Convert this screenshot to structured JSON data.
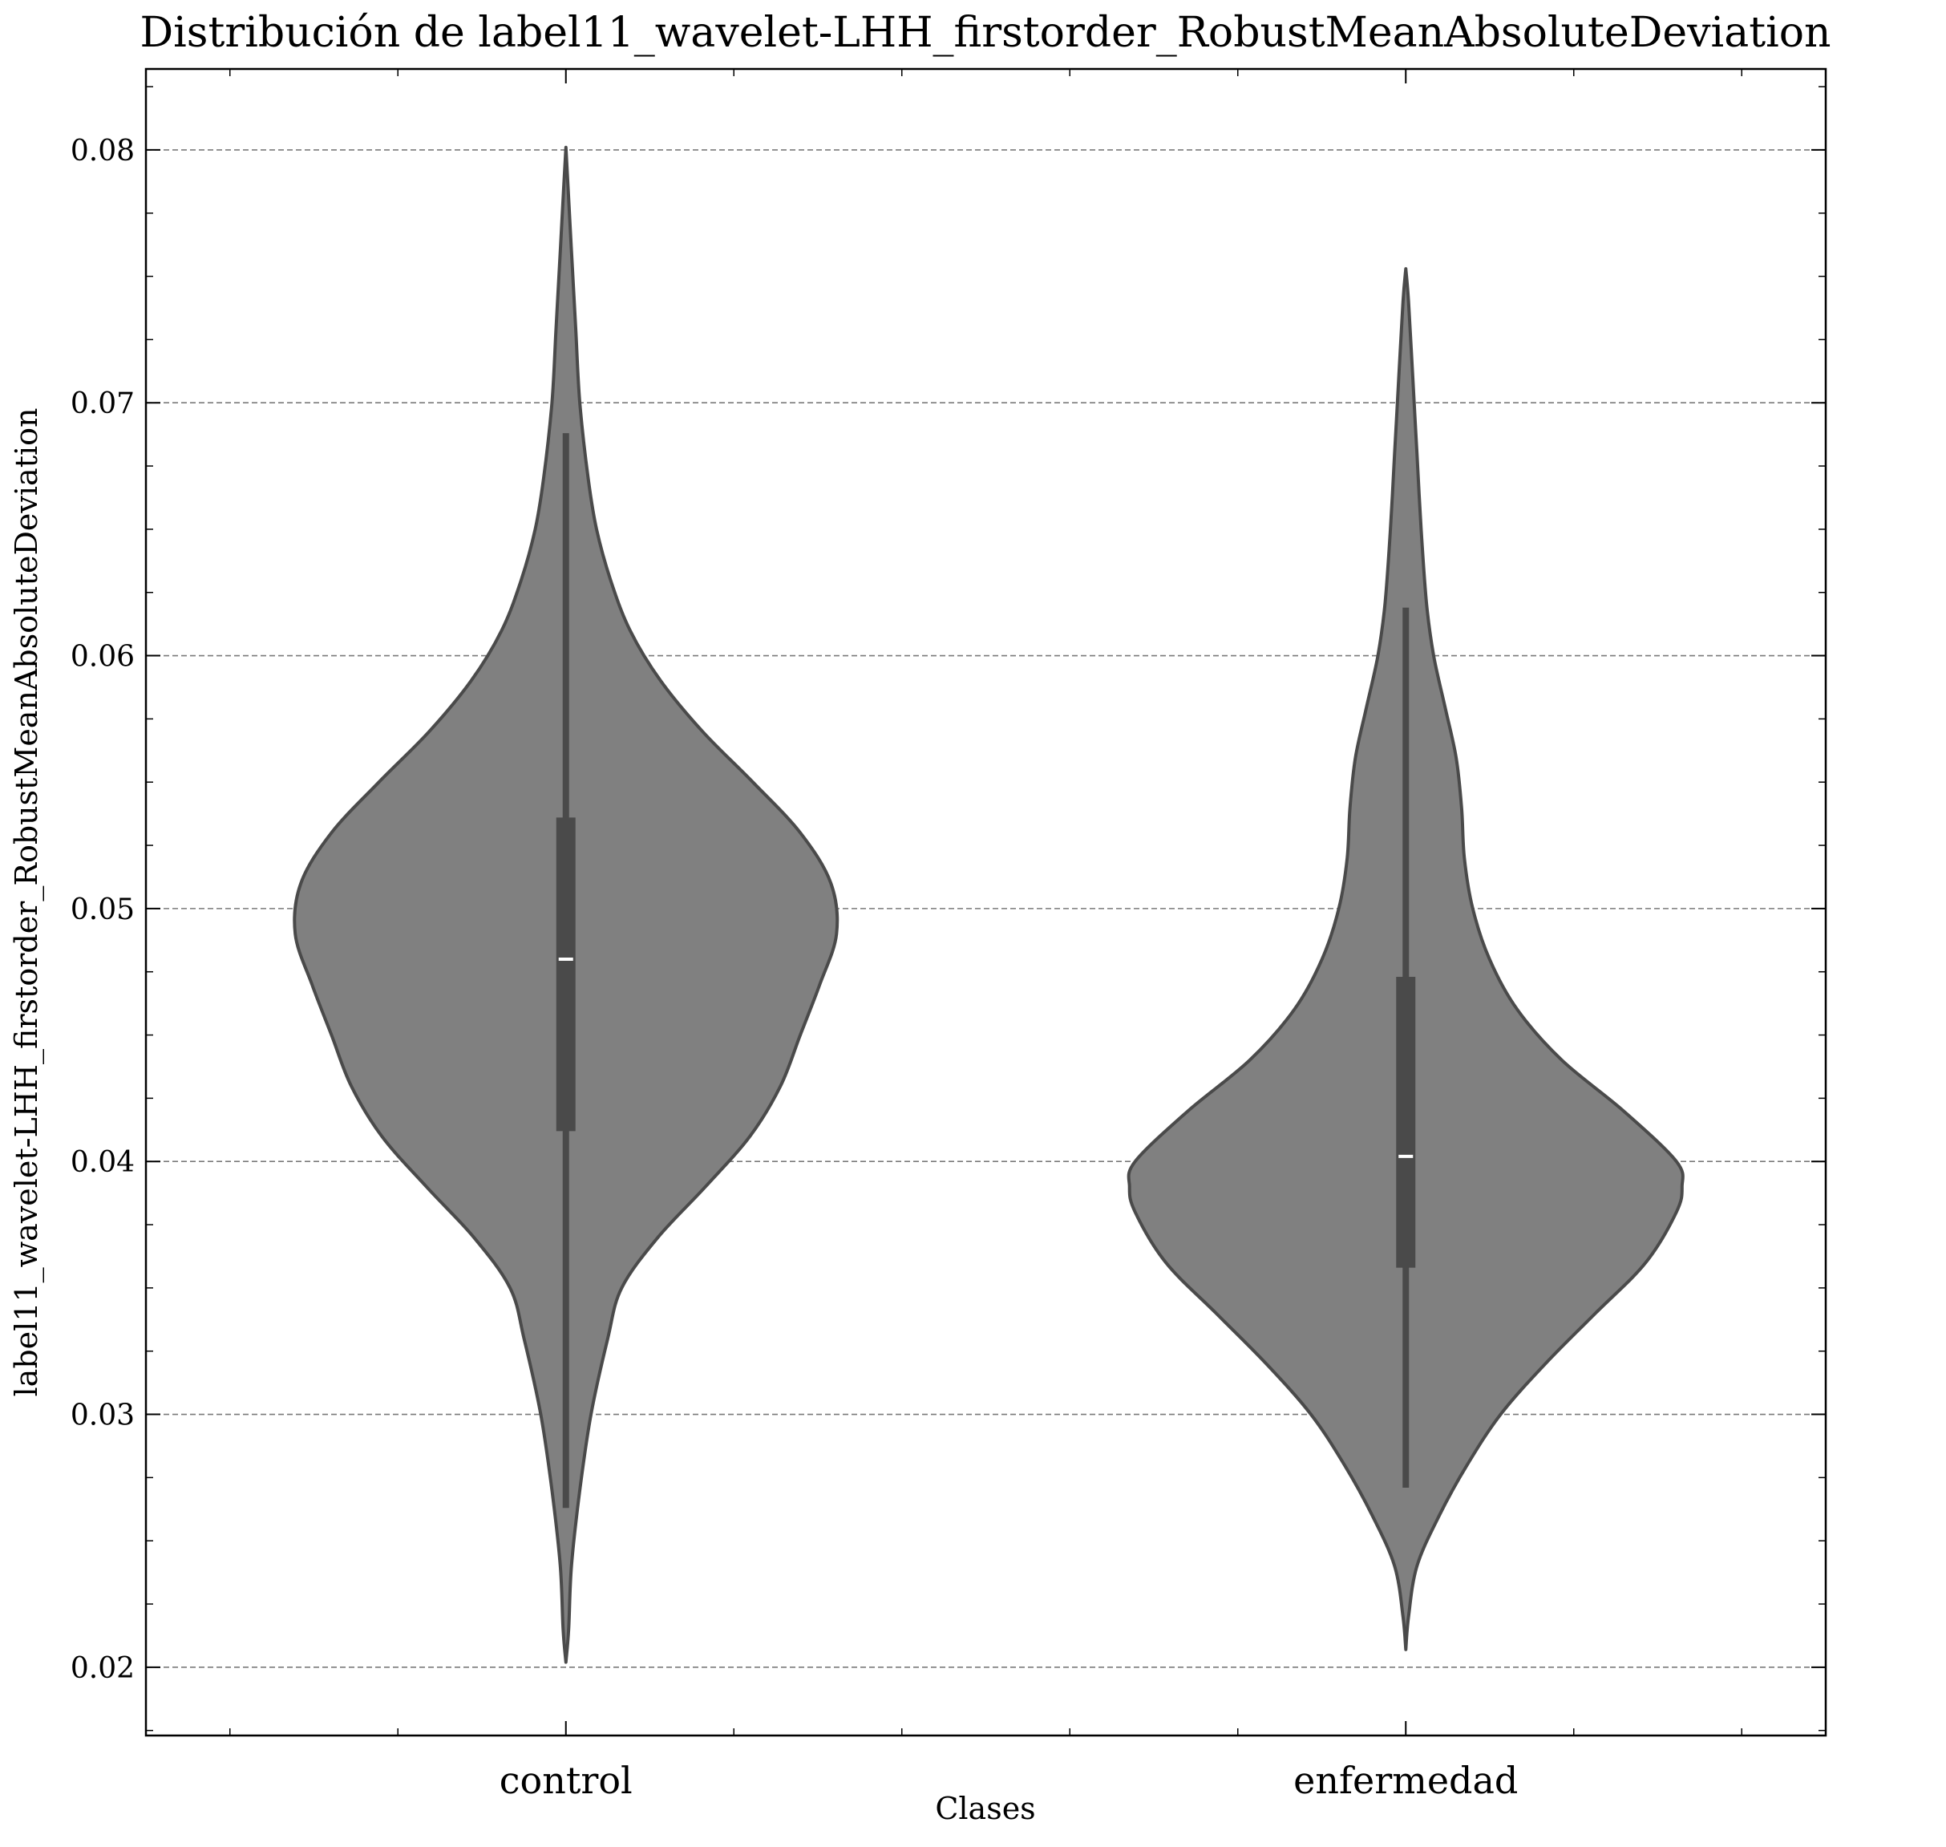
{
  "chart_data": {
    "type": "violin",
    "title": "Distribución de label11_wavelet-LHH_firstorder_RobustMeanAbsoluteDeviation",
    "xlabel": "Clases",
    "ylabel": "label11_wavelet-LHH_firstorder_RobustMeanAbsoluteDeviation",
    "categories": [
      "control",
      "enfermedad"
    ],
    "ylim": [
      0.0173,
      0.0832
    ],
    "yticks": [
      0.02,
      0.03,
      0.04,
      0.05,
      0.06,
      0.07,
      0.08
    ],
    "ytick_labels": [
      "0.02",
      "0.03",
      "0.04",
      "0.05",
      "0.06",
      "0.07",
      "0.08"
    ],
    "grid": "y",
    "fill_color": "#808080",
    "edge_color": "#4a4a4a",
    "box_color": "#4a4a4a",
    "median_color": "#ffffff",
    "violins": [
      {
        "category": "control",
        "min": 0.0202,
        "max": 0.0801,
        "whisker_low": 0.0263,
        "whisker_high": 0.0688,
        "q1": 0.0412,
        "q3": 0.0536,
        "median": 0.048,
        "density": [
          [
            0.0202,
            0.0
          ],
          [
            0.0215,
            0.01
          ],
          [
            0.024,
            0.02
          ],
          [
            0.027,
            0.05
          ],
          [
            0.03,
            0.09
          ],
          [
            0.033,
            0.15
          ],
          [
            0.035,
            0.2
          ],
          [
            0.037,
            0.33
          ],
          [
            0.039,
            0.5
          ],
          [
            0.041,
            0.66
          ],
          [
            0.043,
            0.77
          ],
          [
            0.045,
            0.84
          ],
          [
            0.047,
            0.91
          ],
          [
            0.049,
            0.97
          ],
          [
            0.051,
            0.95
          ],
          [
            0.053,
            0.84
          ],
          [
            0.055,
            0.67
          ],
          [
            0.057,
            0.49
          ],
          [
            0.059,
            0.34
          ],
          [
            0.061,
            0.23
          ],
          [
            0.063,
            0.16
          ],
          [
            0.065,
            0.11
          ],
          [
            0.067,
            0.08
          ],
          [
            0.07,
            0.05
          ],
          [
            0.073,
            0.035
          ],
          [
            0.076,
            0.02
          ],
          [
            0.0785,
            0.008
          ],
          [
            0.0801,
            0.0
          ]
        ]
      },
      {
        "category": "enfermedad",
        "min": 0.0207,
        "max": 0.0753,
        "whisker_low": 0.0271,
        "whisker_high": 0.0619,
        "q1": 0.0358,
        "q3": 0.0473,
        "median": 0.0402,
        "density": [
          [
            0.0207,
            0.0
          ],
          [
            0.022,
            0.01
          ],
          [
            0.024,
            0.04
          ],
          [
            0.026,
            0.12
          ],
          [
            0.028,
            0.22
          ],
          [
            0.03,
            0.34
          ],
          [
            0.032,
            0.5
          ],
          [
            0.034,
            0.68
          ],
          [
            0.036,
            0.86
          ],
          [
            0.038,
            0.97
          ],
          [
            0.039,
            0.99
          ],
          [
            0.04,
            0.97
          ],
          [
            0.042,
            0.78
          ],
          [
            0.044,
            0.56
          ],
          [
            0.046,
            0.4
          ],
          [
            0.048,
            0.3
          ],
          [
            0.05,
            0.24
          ],
          [
            0.052,
            0.21
          ],
          [
            0.054,
            0.2
          ],
          [
            0.056,
            0.18
          ],
          [
            0.058,
            0.14
          ],
          [
            0.06,
            0.1
          ],
          [
            0.062,
            0.075
          ],
          [
            0.065,
            0.055
          ],
          [
            0.068,
            0.04
          ],
          [
            0.071,
            0.025
          ],
          [
            0.074,
            0.01
          ],
          [
            0.0753,
            0.0
          ]
        ]
      }
    ]
  }
}
